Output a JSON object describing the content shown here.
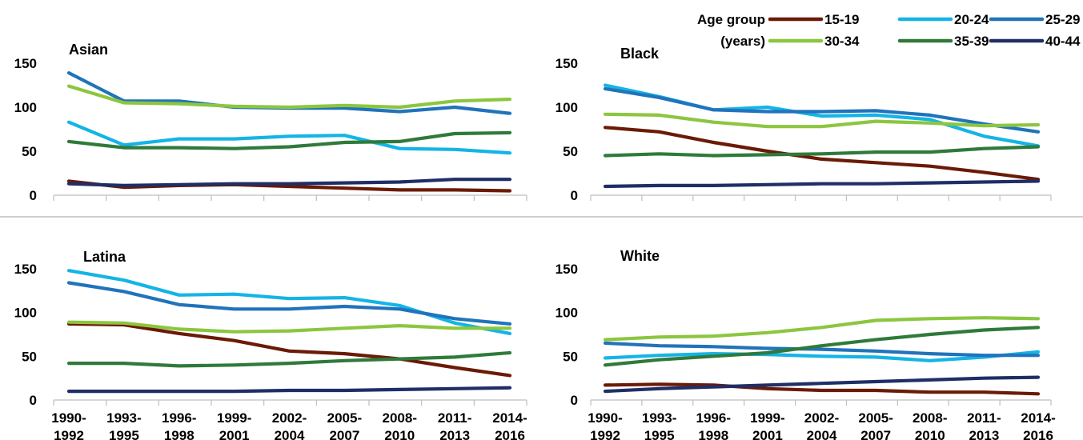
{
  "legend": {
    "title_line1": "Age group",
    "title_line2": "(years)"
  },
  "chart_data": {
    "type": "line",
    "categories": [
      [
        "1990-",
        "1992"
      ],
      [
        "1993-",
        "1995"
      ],
      [
        "1996-",
        "1998"
      ],
      [
        "1999-",
        "2001"
      ],
      [
        "2002-",
        "2004"
      ],
      [
        "2005-",
        "2007"
      ],
      [
        "2008-",
        "2010"
      ],
      [
        "2011-",
        "2013"
      ],
      [
        "2014-",
        "2016"
      ]
    ],
    "ylim": [
      0,
      150
    ],
    "yticks": [
      0,
      50,
      100,
      150
    ],
    "grid": false,
    "legend_position": "top-right",
    "series_styles": [
      {
        "name": "15-19",
        "color": "#6b1a06"
      },
      {
        "name": "20-24",
        "color": "#14b4e6"
      },
      {
        "name": "25-29",
        "color": "#2173bb"
      },
      {
        "name": "30-34",
        "color": "#8cc63f"
      },
      {
        "name": "35-39",
        "color": "#2f7a3a"
      },
      {
        "name": "40-44",
        "color": "#1f2e66"
      }
    ],
    "panels": [
      {
        "title": "Asian",
        "series": [
          {
            "name": "15-19",
            "values": [
              16,
              9,
              11,
              12,
              10,
              8,
              6,
              6,
              5
            ]
          },
          {
            "name": "20-24",
            "values": [
              83,
              57,
              64,
              64,
              67,
              68,
              53,
              52,
              48
            ]
          },
          {
            "name": "25-29",
            "values": [
              139,
              107,
              107,
              100,
              99,
              99,
              95,
              100,
              93
            ]
          },
          {
            "name": "30-34",
            "values": [
              124,
              105,
              104,
              101,
              100,
              102,
              100,
              107,
              109
            ]
          },
          {
            "name": "35-39",
            "values": [
              61,
              54,
              54,
              53,
              55,
              60,
              61,
              70,
              71
            ]
          },
          {
            "name": "40-44",
            "values": [
              13,
              11,
              12,
              13,
              13,
              14,
              15,
              18,
              18
            ]
          }
        ]
      },
      {
        "title": "Black",
        "series": [
          {
            "name": "15-19",
            "values": [
              77,
              72,
              60,
              50,
              41,
              37,
              33,
              26,
              18
            ]
          },
          {
            "name": "20-24",
            "values": [
              125,
              112,
              97,
              100,
              90,
              91,
              86,
              67,
              56
            ]
          },
          {
            "name": "25-29",
            "values": [
              121,
              111,
              97,
              95,
              95,
              96,
              91,
              81,
              72
            ]
          },
          {
            "name": "30-34",
            "values": [
              92,
              91,
              83,
              78,
              78,
              84,
              82,
              79,
              80
            ]
          },
          {
            "name": "35-39",
            "values": [
              45,
              47,
              45,
              46,
              47,
              49,
              49,
              53,
              55
            ]
          },
          {
            "name": "40-44",
            "values": [
              10,
              11,
              11,
              12,
              13,
              13,
              14,
              15,
              16
            ]
          }
        ]
      },
      {
        "title": "Latina",
        "series": [
          {
            "name": "15-19",
            "values": [
              87,
              86,
              76,
              68,
              56,
              53,
              47,
              37,
              28
            ]
          },
          {
            "name": "20-24",
            "values": [
              148,
              137,
              120,
              121,
              116,
              117,
              108,
              88,
              76
            ]
          },
          {
            "name": "25-29",
            "values": [
              134,
              124,
              109,
              104,
              104,
              107,
              104,
              93,
              87
            ]
          },
          {
            "name": "30-34",
            "values": [
              89,
              88,
              81,
              78,
              79,
              82,
              85,
              82,
              82
            ]
          },
          {
            "name": "35-39",
            "values": [
              42,
              42,
              39,
              40,
              42,
              45,
              47,
              49,
              54
            ]
          },
          {
            "name": "40-44",
            "values": [
              10,
              10,
              10,
              10,
              11,
              11,
              12,
              13,
              14
            ]
          }
        ]
      },
      {
        "title": "White",
        "series": [
          {
            "name": "15-19",
            "values": [
              17,
              18,
              17,
              13,
              11,
              11,
              9,
              9,
              7
            ]
          },
          {
            "name": "20-24",
            "values": [
              48,
              51,
              53,
              52,
              50,
              49,
              45,
              49,
              55
            ]
          },
          {
            "name": "25-29",
            "values": [
              65,
              62,
              61,
              59,
              58,
              56,
              53,
              51,
              51
            ]
          },
          {
            "name": "30-34",
            "values": [
              69,
              72,
              73,
              77,
              83,
              91,
              93,
              94,
              93
            ]
          },
          {
            "name": "35-39",
            "values": [
              40,
              46,
              50,
              54,
              62,
              69,
              75,
              80,
              83
            ]
          },
          {
            "name": "40-44",
            "values": [
              10,
              13,
              15,
              17,
              19,
              21,
              23,
              25,
              26
            ]
          }
        ]
      }
    ]
  }
}
